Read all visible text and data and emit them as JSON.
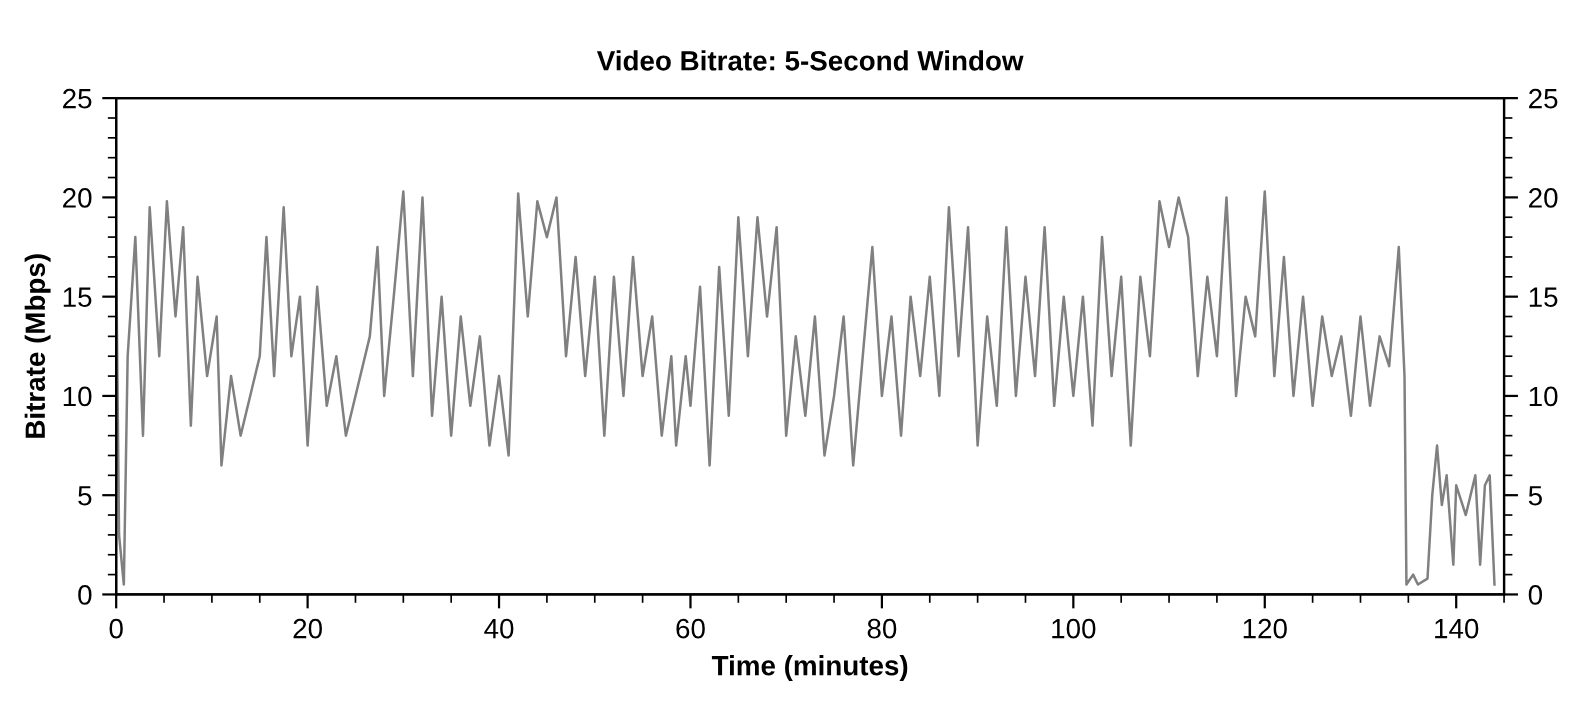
{
  "chart_data": {
    "type": "line",
    "title": "Video Bitrate: 5-Second Window",
    "xlabel": "Time (minutes)",
    "ylabel": "Bitrate (Mbps)",
    "xlim": [
      0,
      145
    ],
    "xticks": [
      0,
      20,
      40,
      60,
      80,
      100,
      120,
      140
    ],
    "ylim": [
      0,
      25
    ],
    "yticks": [
      0,
      5,
      10,
      15,
      20,
      25
    ],
    "y2lim": [
      0,
      25
    ],
    "y2ticks": [
      0,
      5,
      10,
      15,
      20,
      25
    ],
    "grid": false,
    "legend": false,
    "marker": "none",
    "line_style": "solid",
    "series": [
      {
        "color": "#808080",
        "x": [
          0,
          0.3,
          0.8,
          1.2,
          2,
          2.8,
          3.5,
          4.5,
          5.3,
          6.2,
          7,
          7.8,
          8.5,
          9.5,
          10.5,
          11,
          12,
          13,
          14,
          15,
          15.7,
          16.5,
          17.5,
          18.3,
          19.2,
          20,
          21,
          22,
          23,
          24,
          25,
          26.5,
          27.3,
          28,
          29,
          30,
          31,
          32,
          33,
          34,
          35,
          36,
          37,
          38,
          39,
          40,
          41,
          42,
          43,
          44,
          45,
          46,
          47,
          48,
          49,
          50,
          51,
          52,
          53,
          54,
          55,
          56,
          57,
          58,
          58.5,
          59.5,
          60,
          61,
          62,
          63,
          64,
          65,
          66,
          67,
          68,
          69,
          70,
          71,
          72,
          73,
          74,
          75,
          76,
          77,
          78,
          79,
          80,
          81,
          82,
          83,
          84,
          85,
          86,
          87,
          88,
          89,
          90,
          91,
          92,
          93,
          94,
          95,
          96,
          97,
          98,
          99,
          100,
          101,
          102,
          103,
          104,
          105,
          106,
          107,
          108,
          109,
          110,
          111,
          112,
          113,
          114,
          115,
          116,
          117,
          118,
          119,
          120,
          121,
          122,
          123,
          124,
          125,
          126,
          127,
          128,
          129,
          130,
          131,
          132,
          133,
          134,
          134.6,
          134.8,
          135.5,
          136,
          137,
          137.5,
          138,
          138.5,
          139,
          139.7,
          140,
          141,
          142,
          142.5,
          143,
          143.5,
          144
        ],
        "values": [
          17,
          3,
          0.5,
          12,
          18,
          8,
          19.5,
          12,
          19.8,
          14,
          18.5,
          8.5,
          16,
          11,
          14,
          6.5,
          11,
          8,
          10,
          12,
          18,
          11,
          19.5,
          12,
          15,
          7.5,
          15.5,
          9.5,
          12,
          8,
          10,
          13,
          17.5,
          10,
          15,
          20.3,
          11,
          20,
          9,
          15,
          8,
          14,
          9.5,
          13,
          7.5,
          11,
          7,
          20.2,
          14,
          19.8,
          18,
          20,
          12,
          17,
          11,
          16,
          8,
          16,
          10,
          17,
          11,
          14,
          8,
          12,
          7.5,
          12,
          9.5,
          15.5,
          6.5,
          16.5,
          9,
          19,
          12,
          19,
          14,
          18.5,
          8,
          13,
          9,
          14,
          7,
          10,
          14,
          6.5,
          12,
          17.5,
          10,
          14,
          8,
          15,
          11,
          16,
          10,
          19.5,
          12,
          18.5,
          7.5,
          14,
          9.5,
          18.5,
          10,
          16,
          11,
          18.5,
          9.5,
          15,
          10,
          15,
          8.5,
          18,
          11,
          16,
          7.5,
          16,
          12,
          19.8,
          17.5,
          20,
          18,
          11,
          16,
          12,
          20,
          10,
          15,
          13,
          20.3,
          11,
          17,
          10,
          15,
          9.5,
          14,
          11,
          13,
          9,
          14,
          9.5,
          13,
          11.5,
          17.5,
          11,
          0.5,
          1,
          0.5,
          0.8,
          5,
          7.5,
          4.5,
          6,
          1.5,
          5.5,
          4,
          6,
          1.5,
          5.5,
          6,
          0.5
        ]
      }
    ]
  }
}
